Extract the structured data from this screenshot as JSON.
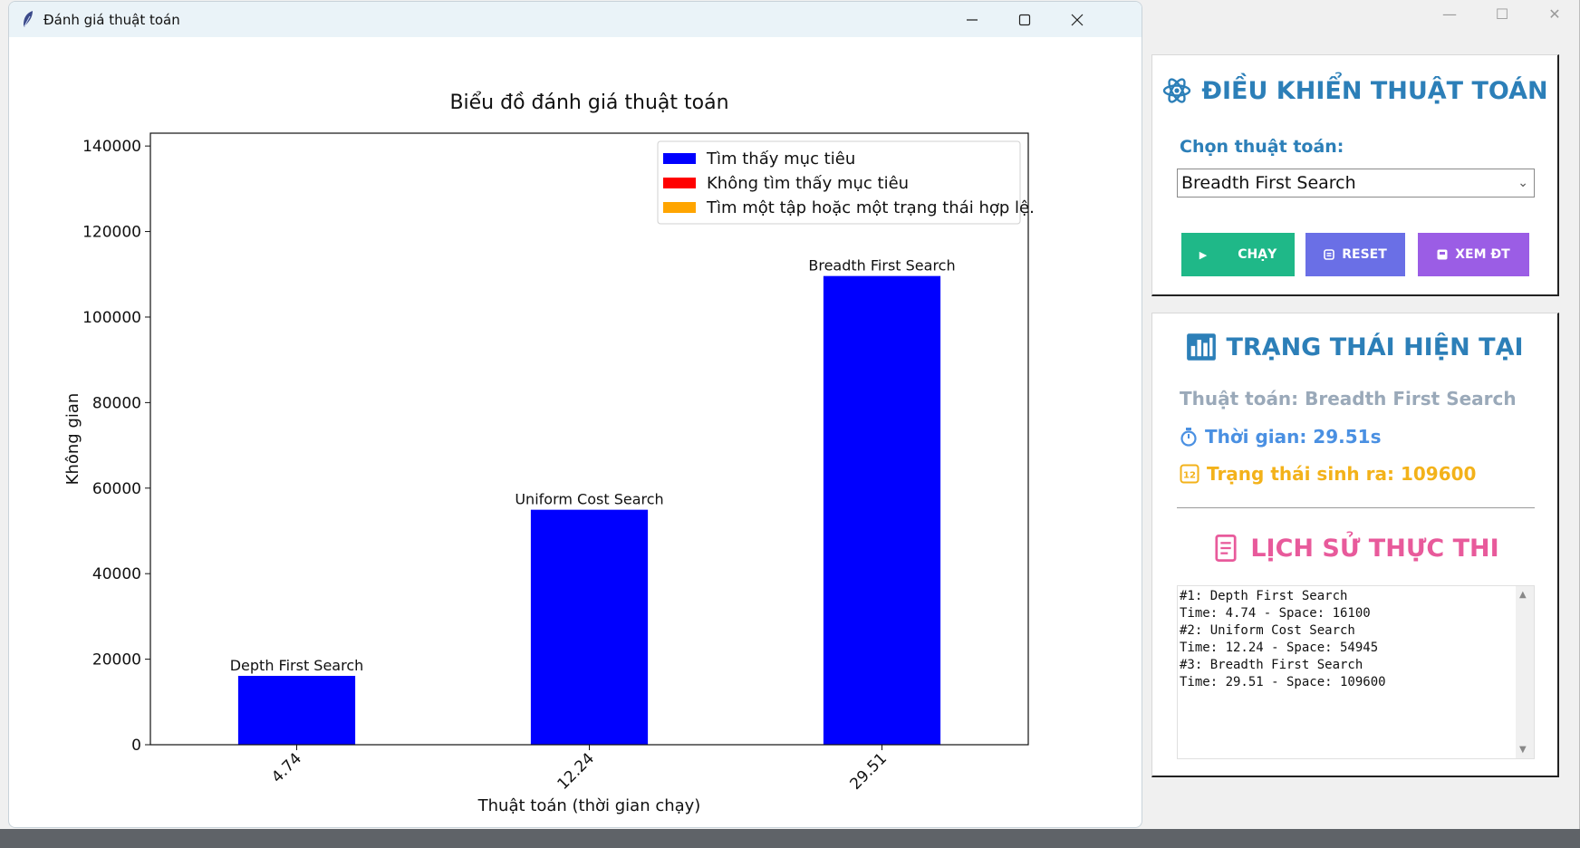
{
  "background_window": {
    "controls": {
      "minimize": "—",
      "maximize": "☐",
      "close": "✕"
    }
  },
  "control_panel": {
    "title": "ĐIỀU KHIỂN THUẬT TOÁN",
    "select_label": "Chọn thuật toán:",
    "selected_algorithm": "Breadth First Search",
    "buttons": {
      "run": "CHẠY",
      "reset": "RESET",
      "view": "XEM ĐT"
    }
  },
  "status_panel": {
    "title": "TRẠNG THÁI HIỆN TẠI",
    "algorithm_line": "Thuật toán: Breadth First Search",
    "time_line": "Thời gian: 29.51s",
    "states_line": "Trạng thái sinh ra: 109600",
    "history_title": "LỊCH SỬ THỰC THI",
    "history_text": "#1: Depth First Search\nTime: 4.74 - Space: 16100\n#2: Uniform Cost Search\nTime: 12.24 - Space: 54945\n#3: Breadth First Search\nTime: 29.51 - Space: 109600"
  },
  "chart_window": {
    "title": "Đánh giá thuật toán"
  },
  "colors": {
    "found": "#0000ff",
    "not_found": "#ff0000",
    "partial": "#ffa500",
    "heading": "#2c7fb8",
    "history_heading": "#e85a9b",
    "run_button": "#1fb888",
    "reset_button": "#6a6fe6",
    "view_button": "#9b5de5"
  },
  "chart_data": {
    "type": "bar",
    "title": "Biểu đồ đánh giá thuật toán",
    "xlabel": "Thuật toán (thời gian chạy)",
    "ylabel": "Không gian",
    "categories": [
      "4.74",
      "12.24",
      "29.51"
    ],
    "values": [
      16100,
      54945,
      109600
    ],
    "bar_labels": [
      "Depth First Search",
      "Uniform Cost Search",
      "Breadth First Search"
    ],
    "ylim": [
      0,
      143000
    ],
    "yticks": [
      0,
      20000,
      40000,
      60000,
      80000,
      100000,
      120000,
      140000
    ],
    "legend": [
      {
        "label": "Tìm thấy mục tiêu",
        "color": "#0000ff"
      },
      {
        "label": "Không tìm thấy mục tiêu",
        "color": "#ff0000"
      },
      {
        "label": "Tìm một tập hoặc một trạng thái hợp lệ.",
        "color": "#ffa500"
      }
    ],
    "legend_position": "top-right",
    "grid": false
  }
}
